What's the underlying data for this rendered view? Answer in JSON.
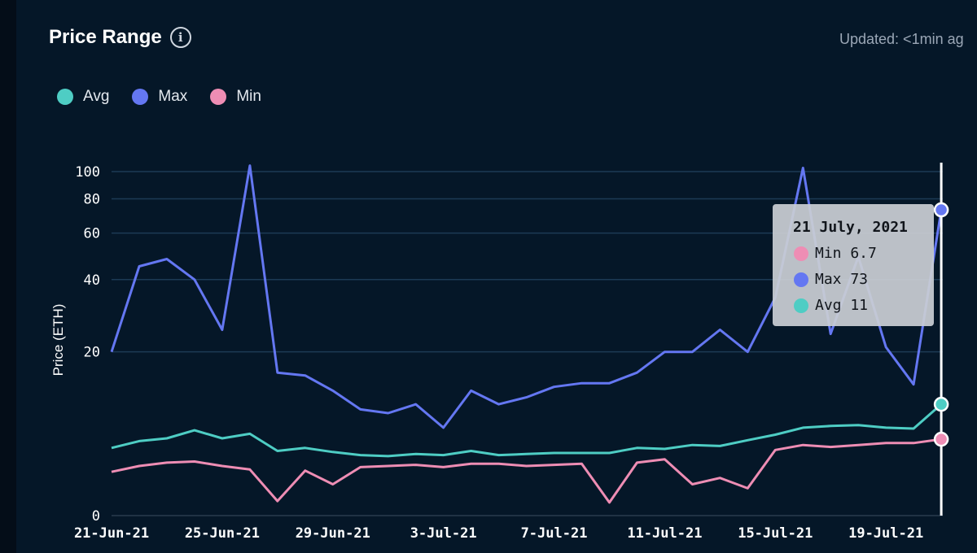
{
  "header": {
    "title": "Price Range",
    "updated": "Updated: <1min ag"
  },
  "legend": [
    {
      "label": "Avg",
      "color": "#4ecdc4"
    },
    {
      "label": "Max",
      "color": "#6477f2"
    },
    {
      "label": "Min",
      "color": "#ee8db4"
    }
  ],
  "tooltip": {
    "date": "21 July, 2021",
    "rows": [
      {
        "text": "Min 6.7",
        "color": "#ee8db4"
      },
      {
        "text": "Max 73",
        "color": "#6477f2"
      },
      {
        "text": "Avg 11",
        "color": "#4ecdc4"
      }
    ]
  },
  "chart_data": {
    "type": "line",
    "title": "Price Range",
    "ylabel": "Price (ETH)",
    "xlabel": "",
    "yscale": "log",
    "yticks": [
      "0",
      "20",
      "40",
      "60",
      "80",
      "100"
    ],
    "xticks": [
      "21-Jun-21",
      "25-Jun-21",
      "29-Jun-21",
      "3-Jul-21",
      "7-Jul-21",
      "11-Jul-21",
      "15-Jul-21",
      "19-Jul-21"
    ],
    "x": [
      "21-Jun-21",
      "22-Jun-21",
      "23-Jun-21",
      "24-Jun-21",
      "25-Jun-21",
      "26-Jun-21",
      "27-Jun-21",
      "28-Jun-21",
      "29-Jun-21",
      "30-Jun-21",
      "1-Jul-21",
      "2-Jul-21",
      "3-Jul-21",
      "4-Jul-21",
      "5-Jul-21",
      "6-Jul-21",
      "7-Jul-21",
      "8-Jul-21",
      "9-Jul-21",
      "10-Jul-21",
      "11-Jul-21",
      "12-Jul-21",
      "13-Jul-21",
      "14-Jul-21",
      "15-Jul-21",
      "16-Jul-21",
      "17-Jul-21",
      "18-Jul-21",
      "19-Jul-21",
      "20-Jul-21",
      "21-Jul-21"
    ],
    "series": [
      {
        "name": "Max",
        "color": "#6477f2",
        "values": [
          20,
          45,
          48,
          40,
          25,
          105,
          16,
          15.5,
          13,
          10.3,
          9.8,
          11,
          8,
          13,
          11,
          12,
          13.6,
          14.2,
          14.2,
          16,
          20,
          20,
          25,
          20,
          34,
          103,
          24,
          49,
          21,
          14,
          73
        ]
      },
      {
        "name": "Avg",
        "color": "#4ecdc4",
        "values": [
          5.8,
          6.5,
          6.8,
          7.7,
          6.8,
          7.3,
          5.5,
          5.8,
          5.4,
          5.1,
          5.0,
          5.2,
          5.1,
          5.5,
          5.1,
          5.2,
          5.3,
          5.3,
          5.3,
          5.8,
          5.7,
          6.1,
          6.0,
          6.6,
          7.2,
          8.0,
          8.2,
          8.3,
          8.0,
          7.9,
          11
        ]
      },
      {
        "name": "Min",
        "color": "#ee8db4",
        "values": [
          3.6,
          4.1,
          4.4,
          4.5,
          4.1,
          3.8,
          1.4,
          3.7,
          2.6,
          4.0,
          4.1,
          4.2,
          4.0,
          4.3,
          4.3,
          4.1,
          4.2,
          4.3,
          1.3,
          4.4,
          4.7,
          2.6,
          3.1,
          2.3,
          5.6,
          6.1,
          5.9,
          6.1,
          6.3,
          6.3,
          6.7
        ]
      }
    ]
  }
}
